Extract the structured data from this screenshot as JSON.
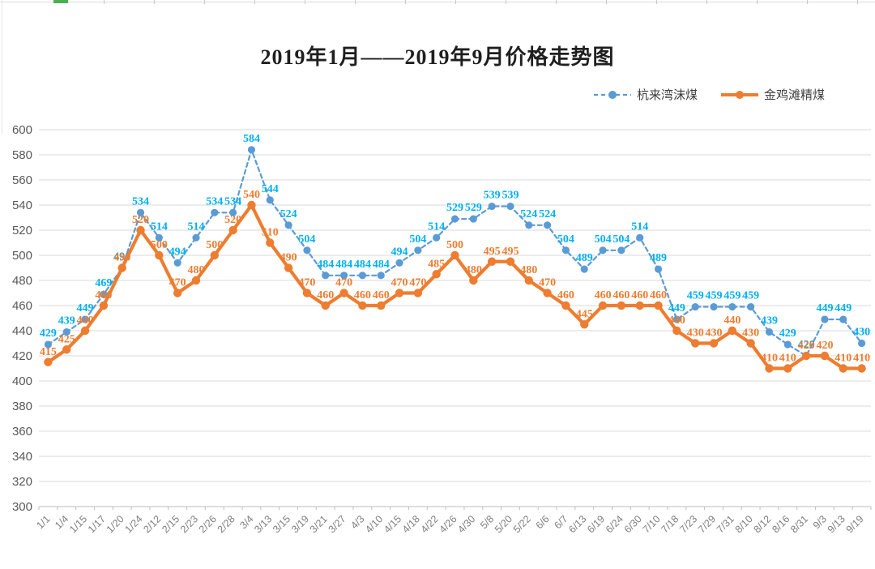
{
  "chart_data": {
    "type": "line",
    "title": "2019年1月——2019年9月价格走势图",
    "legend_position": "top-right",
    "grid": true,
    "categories": [
      "1/1",
      "1/4",
      "1/15",
      "1/17",
      "1/20",
      "1/24",
      "2/12",
      "2/15",
      "2/23",
      "2/26",
      "2/28",
      "3/4",
      "3/13",
      "3/15",
      "3/19",
      "3/21",
      "3/27",
      "4/3",
      "4/10",
      "4/15",
      "4/18",
      "4/22",
      "4/26",
      "4/30",
      "5/8",
      "5/20",
      "5/22",
      "6/6",
      "6/7",
      "6/13",
      "6/19",
      "6/24",
      "6/30",
      "7/10",
      "7/18",
      "7/23",
      "7/29",
      "7/31",
      "8/10",
      "8/12",
      "8/16",
      "8/31",
      "9/3",
      "9/13",
      "9/19"
    ],
    "series": [
      {
        "name": "杭来湾沫煤",
        "style": "dashed",
        "color": "#5B9BD5",
        "label_color": "#00B0F0",
        "values": [
          429,
          439,
          449,
          469,
          490,
          534,
          514,
          494,
          514,
          534,
          534,
          584,
          544,
          524,
          504,
          484,
          484,
          484,
          484,
          494,
          504,
          514,
          529,
          529,
          539,
          539,
          524,
          524,
          504,
          489,
          504,
          504,
          514,
          489,
          449,
          459,
          459,
          459,
          459,
          439,
          429,
          420,
          449,
          449,
          430
        ]
      },
      {
        "name": "金鸡滩精煤",
        "style": "solid",
        "color": "#ED7D31",
        "label_color": "#ED7D31",
        "values": [
          415,
          425,
          440,
          460,
          490,
          520,
          500,
          470,
          480,
          500,
          520,
          540,
          510,
          490,
          470,
          460,
          470,
          460,
          460,
          470,
          470,
          485,
          500,
          480,
          495,
          495,
          480,
          470,
          460,
          445,
          460,
          460,
          460,
          460,
          440,
          430,
          430,
          440,
          430,
          410,
          410,
          420,
          420,
          410,
          410
        ]
      }
    ],
    "y_axis": {
      "min": 300,
      "max": 600,
      "step": 20,
      "ticks": [
        600,
        580,
        560,
        540,
        520,
        500,
        480,
        460,
        440,
        420,
        400,
        380,
        360,
        340,
        320,
        300
      ]
    }
  }
}
